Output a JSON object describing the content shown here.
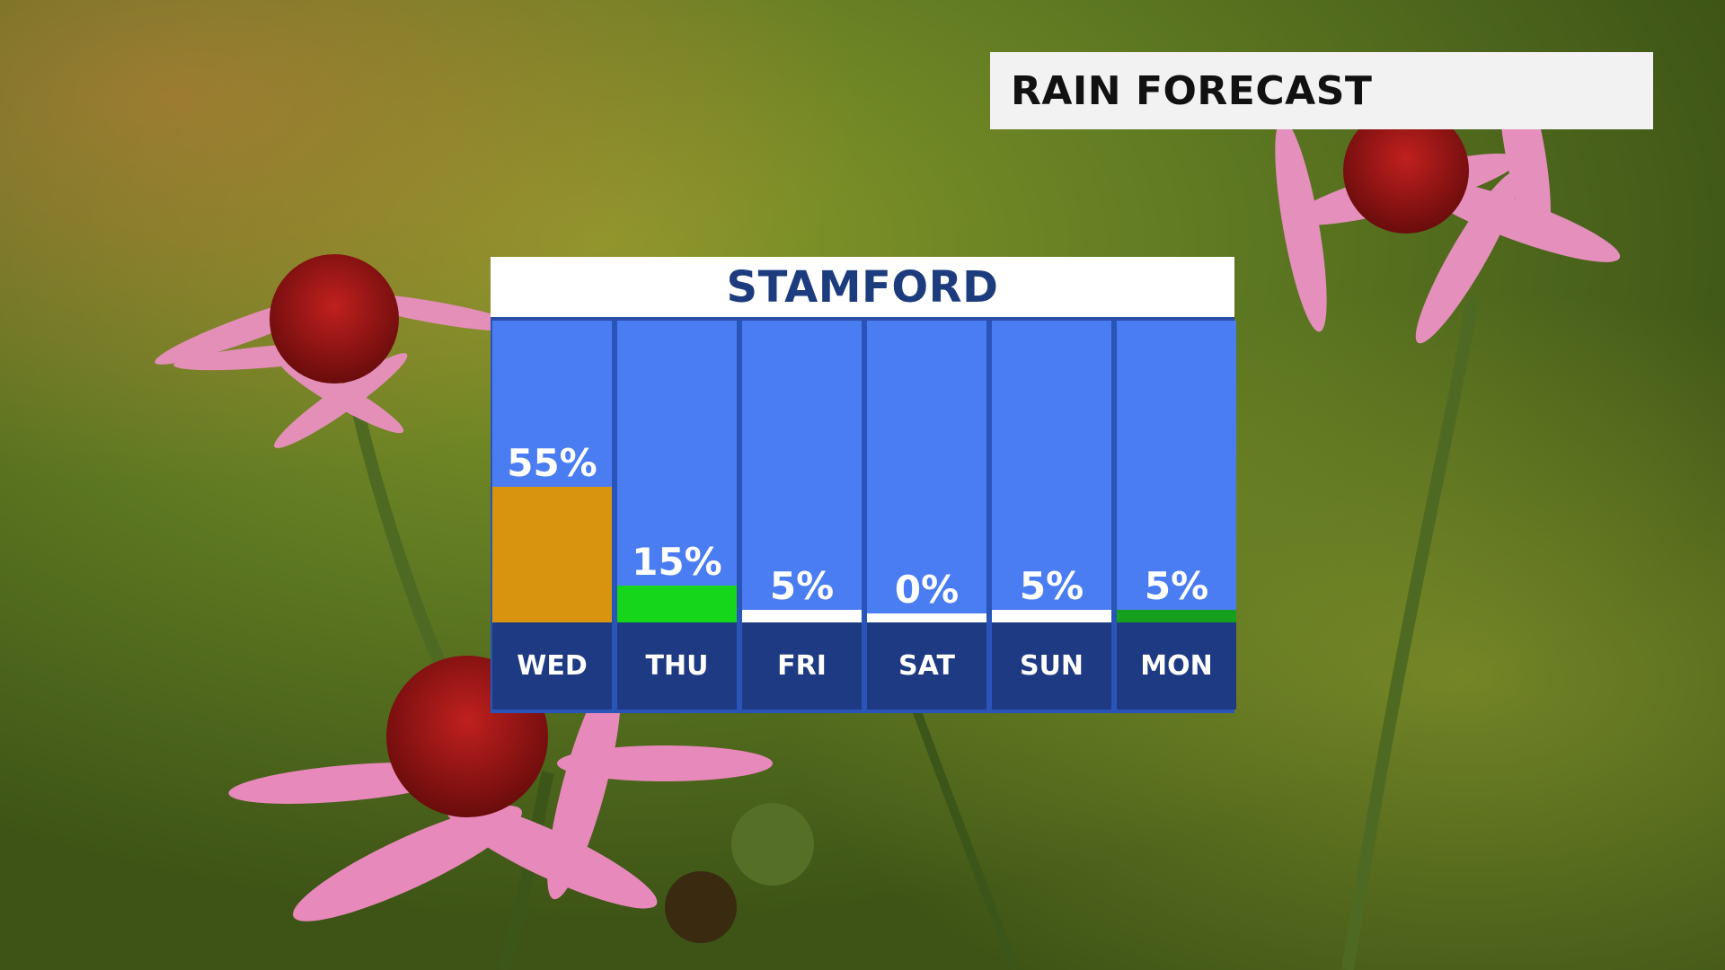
{
  "title": "RAIN FORECAST",
  "location": "STAMFORD",
  "colors": {
    "panel_sky": "#4a7cf2",
    "day_band": "#1e3a82",
    "city_text": "#1d3c7e"
  },
  "chart_data": {
    "type": "bar",
    "title": "STAMFORD",
    "categories": [
      "WED",
      "THU",
      "FRI",
      "SAT",
      "SUN",
      "MON"
    ],
    "values": [
      55,
      15,
      5,
      0,
      5,
      5
    ],
    "labels": [
      "55%",
      "15%",
      "5%",
      "0%",
      "5%",
      "5%"
    ],
    "bar_colors": [
      "#d9940f",
      "#15d61a",
      "#ffffff",
      "#ffffff",
      "#ffffff",
      "#14a01c"
    ],
    "ylim": [
      0,
      100
    ],
    "unit": "%"
  }
}
